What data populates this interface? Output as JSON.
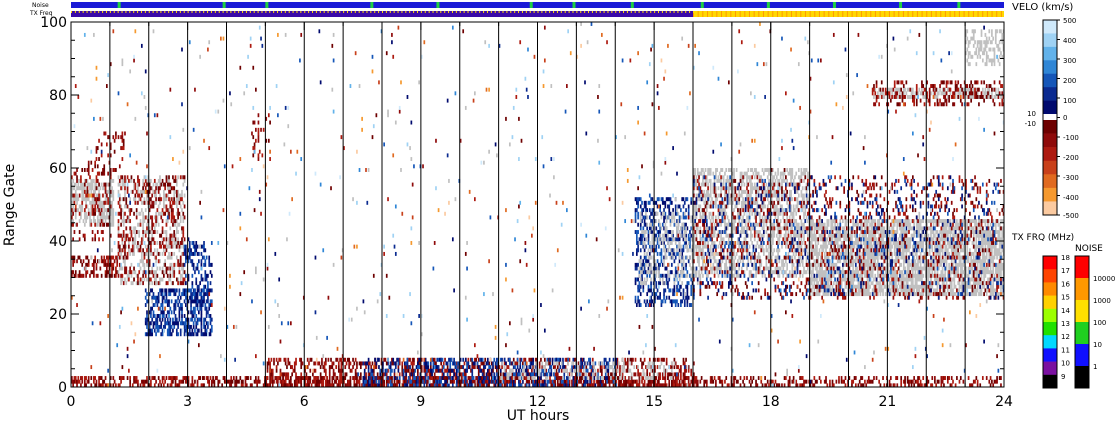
{
  "chart_data": {
    "type": "heatmap",
    "xlabel": "UT hours",
    "ylabel": "Range Gate",
    "xlim": [
      0,
      24
    ],
    "ylim": [
      0,
      100
    ],
    "x_ticks": [
      0,
      3,
      6,
      9,
      12,
      15,
      18,
      21,
      24
    ],
    "y_ticks": [
      0,
      20,
      40,
      60,
      80,
      100
    ],
    "hour_divider_lines": [
      1,
      2,
      3,
      4,
      5,
      6,
      7,
      8,
      9,
      10,
      11,
      12,
      13,
      14,
      15,
      16,
      17,
      18,
      19,
      20,
      21,
      22,
      23
    ],
    "status_bars": {
      "noise_label": "Noise",
      "freq_label": "TX Freq",
      "noise_color": "#1a1ad6",
      "noise_green_marks_hours": [
        1.2,
        3.9,
        5.0,
        7.7,
        9.4,
        11.8,
        12.9,
        14.4,
        16.2,
        17.9,
        19.6,
        21.3,
        22.8
      ],
      "freq_segments": [
        {
          "start": 0,
          "end": 16,
          "color": "#3a0aa8"
        },
        {
          "start": 16,
          "end": 24,
          "color": "#ffd800"
        }
      ],
      "freq_before_color": "#ffd800",
      "freq_before_end_hour": 0.0
    },
    "velocity_scale": {
      "title": "VELO (km/s)",
      "labels": [
        "500",
        "400",
        "300",
        "200",
        "100",
        "10",
        "0",
        "-10",
        "-100",
        "-200",
        "-300",
        "-400",
        "-500"
      ],
      "positive_colors": [
        "#cfe9fb",
        "#9fd2f4",
        "#62b2ea",
        "#2f86d6",
        "#1556b8",
        "#0a2a90",
        "#000a6e"
      ],
      "negative_colors": [
        "#6e0000",
        "#8e0a0a",
        "#ad1a10",
        "#c8401a",
        "#e06a20",
        "#f5992f",
        "#fbcaa0"
      ]
    },
    "tx_freq_scale": {
      "title": "TX FRQ (MHz)",
      "labels": [
        "18",
        "17",
        "16",
        "15",
        "14",
        "13",
        "12",
        "11",
        "10",
        "9"
      ],
      "colors": [
        "#ff0000",
        "#ff4400",
        "#ff8a00",
        "#ffd000",
        "#9cff00",
        "#20e000",
        "#00d8ff",
        "#1010ff",
        "#7a10a0",
        "#000000"
      ]
    },
    "noise_scale": {
      "title": "NOISE",
      "labels": [
        "10000",
        "1000",
        "100",
        "10",
        "1"
      ],
      "colors": [
        "#ff0000",
        "#ff9800",
        "#ffe000",
        "#20d020",
        "#1010ff",
        "#000000"
      ]
    },
    "ground_scatter_color": "#c0c0c0",
    "echo_regions": [
      {
        "kind": "gs",
        "x0": 0.0,
        "x1": 1.1,
        "y0": 44,
        "y1": 57,
        "density": 0.55
      },
      {
        "kind": "neg",
        "x0": 0.0,
        "x1": 1.0,
        "y0": 40,
        "y1": 62,
        "density": 0.18
      },
      {
        "kind": "neg",
        "x0": 0.6,
        "x1": 1.4,
        "y0": 58,
        "y1": 70,
        "density": 0.12
      },
      {
        "kind": "neg",
        "x0": 0.0,
        "x1": 1.2,
        "y0": 30,
        "y1": 36,
        "density": 0.45
      },
      {
        "kind": "gs",
        "x0": 1.2,
        "x1": 2.9,
        "y0": 28,
        "y1": 58,
        "density": 0.28
      },
      {
        "kind": "neg",
        "x0": 1.2,
        "x1": 2.9,
        "y0": 28,
        "y1": 58,
        "density": 0.22
      },
      {
        "kind": "pos",
        "x0": 1.9,
        "x1": 3.6,
        "y0": 14,
        "y1": 27,
        "density": 0.55
      },
      {
        "kind": "pos",
        "x0": 2.9,
        "x1": 3.6,
        "y0": 25,
        "y1": 40,
        "density": 0.3
      },
      {
        "kind": "neg",
        "x0": 4.6,
        "x1": 5.1,
        "y0": 62,
        "y1": 75,
        "density": 0.15
      },
      {
        "kind": "pos",
        "x0": 14.5,
        "x1": 16.0,
        "y0": 22,
        "y1": 52,
        "density": 0.35
      },
      {
        "kind": "gs",
        "x0": 14.6,
        "x1": 16.2,
        "y0": 28,
        "y1": 48,
        "density": 0.25
      },
      {
        "kind": "gs",
        "x0": 16.0,
        "x1": 19.0,
        "y0": 30,
        "y1": 60,
        "density": 0.45
      },
      {
        "kind": "gs",
        "x0": 19.0,
        "x1": 24.0,
        "y0": 25,
        "y1": 46,
        "density": 0.7
      },
      {
        "kind": "neg",
        "x0": 16.0,
        "x1": 24.0,
        "y0": 24,
        "y1": 58,
        "density": 0.12
      },
      {
        "kind": "pos",
        "x0": 16.0,
        "x1": 24.0,
        "y0": 24,
        "y1": 58,
        "density": 0.07
      },
      {
        "kind": "gs",
        "x0": 20.6,
        "x1": 24.0,
        "y0": 79,
        "y1": 82,
        "density": 0.55
      },
      {
        "kind": "neg",
        "x0": 20.6,
        "x1": 24.0,
        "y0": 77,
        "y1": 84,
        "density": 0.25
      },
      {
        "kind": "gs",
        "x0": 23.0,
        "x1": 24.0,
        "y0": 88,
        "y1": 98,
        "density": 0.35
      },
      {
        "kind": "neg",
        "x0": 0.0,
        "x1": 16.0,
        "y0": 0,
        "y1": 3,
        "density": 0.5
      },
      {
        "kind": "neg",
        "x0": 5.0,
        "x1": 16.0,
        "y0": 0,
        "y1": 8,
        "density": 0.35
      },
      {
        "kind": "pos",
        "x0": 7.5,
        "x1": 14.0,
        "y0": 0,
        "y1": 8,
        "density": 0.3
      },
      {
        "kind": "gs",
        "x0": 11.0,
        "x1": 15.5,
        "y0": 2,
        "y1": 7,
        "density": 0.2
      },
      {
        "kind": "neg",
        "x0": 16.0,
        "x1": 24.0,
        "y0": 0,
        "y1": 3,
        "density": 0.3
      },
      {
        "kind": "sparse",
        "x0": 0.0,
        "x1": 24.0,
        "y0": 0,
        "y1": 100,
        "density": 0.012
      }
    ]
  }
}
